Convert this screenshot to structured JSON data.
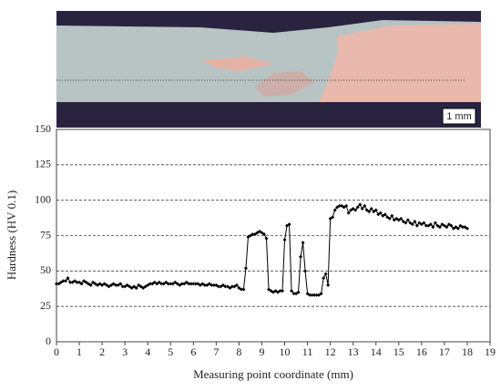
{
  "image": {
    "scale_label": "1 mm"
  },
  "chart_data": {
    "type": "line",
    "xlabel": "Measuring point coordinate (mm)",
    "ylabel": "Hardness (HV 0.1)",
    "xlim": [
      0,
      19
    ],
    "xticks": [
      0,
      1,
      2,
      3,
      4,
      5,
      6,
      7,
      8,
      9,
      10,
      11,
      12,
      13,
      14,
      15,
      16,
      17,
      18,
      19
    ],
    "ylim": [
      0,
      150
    ],
    "yticks": [
      0,
      25,
      50,
      75,
      100,
      125,
      150
    ],
    "grid": true,
    "x": [
      0,
      0.1,
      0.2,
      0.3,
      0.4,
      0.5,
      0.6,
      0.7,
      0.8,
      0.9,
      1,
      1.1,
      1.2,
      1.3,
      1.4,
      1.5,
      1.6,
      1.7,
      1.8,
      1.9,
      2,
      2.1,
      2.2,
      2.3,
      2.4,
      2.5,
      2.6,
      2.7,
      2.8,
      2.9,
      3,
      3.1,
      3.2,
      3.3,
      3.4,
      3.5,
      3.6,
      3.7,
      3.8,
      3.9,
      4,
      4.1,
      4.2,
      4.3,
      4.4,
      4.5,
      4.6,
      4.7,
      4.8,
      4.9,
      5,
      5.1,
      5.2,
      5.3,
      5.4,
      5.5,
      5.6,
      5.7,
      5.8,
      5.9,
      6,
      6.1,
      6.2,
      6.3,
      6.4,
      6.5,
      6.6,
      6.7,
      6.8,
      6.9,
      7,
      7.1,
      7.2,
      7.3,
      7.4,
      7.5,
      7.6,
      7.7,
      7.8,
      7.9,
      8,
      8.1,
      8.2,
      8.3,
      8.4,
      8.5,
      8.6,
      8.7,
      8.8,
      8.9,
      9,
      9.1,
      9.2,
      9.3,
      9.4,
      9.5,
      9.6,
      9.7,
      9.8,
      9.9,
      10,
      10.1,
      10.2,
      10.3,
      10.4,
      10.5,
      10.6,
      10.7,
      10.8,
      10.9,
      11,
      11.1,
      11.2,
      11.3,
      11.4,
      11.5,
      11.6,
      11.7,
      11.8,
      11.9,
      12,
      12.1,
      12.2,
      12.3,
      12.4,
      12.5,
      12.6,
      12.7,
      12.8,
      12.9,
      13,
      13.1,
      13.2,
      13.3,
      13.4,
      13.5,
      13.6,
      13.7,
      13.8,
      13.9,
      14,
      14.1,
      14.2,
      14.3,
      14.4,
      14.5,
      14.6,
      14.7,
      14.8,
      14.9,
      15,
      15.1,
      15.2,
      15.3,
      15.4,
      15.5,
      15.6,
      15.7,
      15.8,
      15.9,
      16,
      16.1,
      16.2,
      16.3,
      16.4,
      16.5,
      16.6,
      16.7,
      16.8,
      16.9,
      17,
      17.1,
      17.2,
      17.3,
      17.4,
      17.5,
      17.6,
      17.7,
      17.8,
      17.9,
      18
    ],
    "series": [
      {
        "color": "#000000",
        "values": [
          41,
          41,
          42,
          43,
          43,
          45,
          42,
          42,
          43,
          42,
          42,
          41,
          43,
          42,
          41,
          40,
          42,
          41,
          40,
          41,
          40,
          41,
          40,
          39,
          40,
          41,
          40,
          40,
          41,
          39,
          39,
          40,
          39,
          38,
          39,
          38,
          40,
          39,
          38,
          39,
          40,
          41,
          41,
          42,
          41,
          42,
          41,
          41,
          42,
          41,
          41,
          41,
          42,
          41,
          40,
          41,
          41,
          42,
          41,
          41,
          41,
          41,
          41,
          40,
          41,
          40,
          40,
          41,
          40,
          40,
          40,
          39,
          39,
          40,
          39,
          39,
          38,
          39,
          39,
          40,
          38,
          37,
          37,
          52,
          74,
          75,
          76,
          76,
          77,
          78,
          77,
          76,
          73,
          37,
          36,
          35,
          36,
          35,
          36,
          36,
          72,
          82,
          83,
          36,
          34,
          34,
          35,
          60,
          70,
          50,
          34,
          33,
          33,
          33,
          33,
          33,
          34,
          45,
          48,
          40,
          87,
          88,
          93,
          95,
          96,
          96,
          95,
          96,
          91,
          93,
          94,
          93,
          95,
          97,
          94,
          96,
          93,
          92,
          94,
          92,
          93,
          90,
          91,
          89,
          90,
          88,
          87,
          89,
          86,
          87,
          86,
          87,
          85,
          84,
          86,
          84,
          83,
          85,
          82,
          84,
          83,
          84,
          82,
          82,
          83,
          81,
          84,
          82,
          81,
          83,
          82,
          81,
          83,
          82,
          80,
          81,
          80,
          82,
          81,
          81,
          80
        ]
      }
    ]
  }
}
